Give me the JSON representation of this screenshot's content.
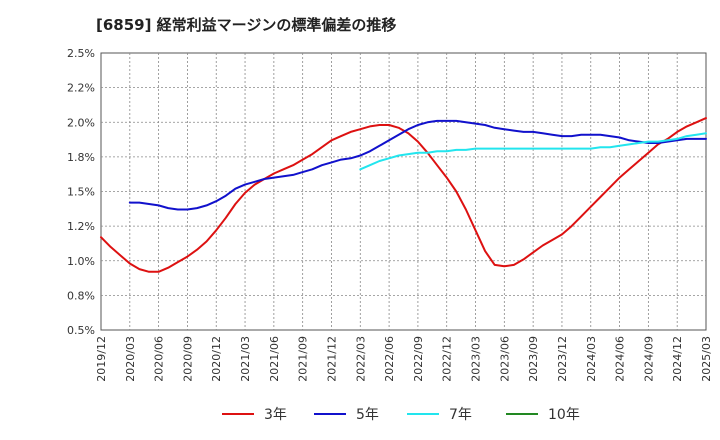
{
  "title": "[6859]  経常利益マージンの標準偏差の推移",
  "chart_data": {
    "type": "line",
    "title": "[6859]  経常利益マージンの標準偏差の推移",
    "xlabel": "",
    "ylabel": "",
    "ylim": [
      0.5,
      2.5
    ],
    "y_ticks": [
      "0.5%",
      "0.8%",
      "1.0%",
      "1.2%",
      "1.5%",
      "1.8%",
      "2.0%",
      "2.2%",
      "2.5%"
    ],
    "x_ticks": [
      "2019/12",
      "2020/03",
      "2020/06",
      "2020/09",
      "2020/12",
      "2021/03",
      "2021/06",
      "2021/09",
      "2021/12",
      "2022/03",
      "2022/06",
      "2022/09",
      "2022/12",
      "2023/03",
      "2023/06",
      "2023/09",
      "2023/12",
      "2024/03",
      "2024/06",
      "2024/09",
      "2024/12",
      "2025/03"
    ],
    "grid": true,
    "legend_position": "bottom",
    "series": [
      {
        "name": "3年",
        "color": "#dd1111",
        "points": [
          [
            "2019/12",
            1.17
          ],
          [
            "2020/01",
            1.1
          ],
          [
            "2020/02",
            1.04
          ],
          [
            "2020/03",
            0.98
          ],
          [
            "2020/04",
            0.94
          ],
          [
            "2020/05",
            0.92
          ],
          [
            "2020/06",
            0.92
          ],
          [
            "2020/07",
            0.95
          ],
          [
            "2020/08",
            0.99
          ],
          [
            "2020/09",
            1.03
          ],
          [
            "2020/10",
            1.08
          ],
          [
            "2020/11",
            1.14
          ],
          [
            "2020/12",
            1.22
          ],
          [
            "2021/01",
            1.31
          ],
          [
            "2021/02",
            1.41
          ],
          [
            "2021/03",
            1.49
          ],
          [
            "2021/04",
            1.55
          ],
          [
            "2021/05",
            1.59
          ],
          [
            "2021/06",
            1.63
          ],
          [
            "2021/07",
            1.66
          ],
          [
            "2021/08",
            1.69
          ],
          [
            "2021/09",
            1.73
          ],
          [
            "2021/10",
            1.77
          ],
          [
            "2021/11",
            1.82
          ],
          [
            "2021/12",
            1.87
          ],
          [
            "2022/01",
            1.9
          ],
          [
            "2022/02",
            1.93
          ],
          [
            "2022/03",
            1.95
          ],
          [
            "2022/04",
            1.97
          ],
          [
            "2022/05",
            1.98
          ],
          [
            "2022/06",
            1.98
          ],
          [
            "2022/07",
            1.96
          ],
          [
            "2022/08",
            1.92
          ],
          [
            "2022/09",
            1.86
          ],
          [
            "2022/10",
            1.78
          ],
          [
            "2022/11",
            1.69
          ],
          [
            "2022/12",
            1.6
          ],
          [
            "2023/01",
            1.5
          ],
          [
            "2023/02",
            1.37
          ],
          [
            "2023/03",
            1.22
          ],
          [
            "2023/04",
            1.07
          ],
          [
            "2023/05",
            0.97
          ],
          [
            "2023/06",
            0.96
          ],
          [
            "2023/07",
            0.97
          ],
          [
            "2023/08",
            1.01
          ],
          [
            "2023/09",
            1.06
          ],
          [
            "2023/10",
            1.11
          ],
          [
            "2023/11",
            1.15
          ],
          [
            "2023/12",
            1.19
          ],
          [
            "2024/01",
            1.25
          ],
          [
            "2024/02",
            1.32
          ],
          [
            "2024/03",
            1.39
          ],
          [
            "2024/04",
            1.46
          ],
          [
            "2024/05",
            1.53
          ],
          [
            "2024/06",
            1.6
          ],
          [
            "2024/07",
            1.66
          ],
          [
            "2024/08",
            1.72
          ],
          [
            "2024/09",
            1.78
          ],
          [
            "2024/10",
            1.84
          ],
          [
            "2024/11",
            1.88
          ],
          [
            "2024/12",
            1.93
          ],
          [
            "2025/01",
            1.97
          ],
          [
            "2025/02",
            2.0
          ],
          [
            "2025/03",
            2.03
          ]
        ]
      },
      {
        "name": "5年",
        "color": "#1111cc",
        "points": [
          [
            "2020/03",
            1.42
          ],
          [
            "2020/04",
            1.42
          ],
          [
            "2020/05",
            1.41
          ],
          [
            "2020/06",
            1.4
          ],
          [
            "2020/07",
            1.38
          ],
          [
            "2020/08",
            1.37
          ],
          [
            "2020/09",
            1.37
          ],
          [
            "2020/10",
            1.38
          ],
          [
            "2020/11",
            1.4
          ],
          [
            "2020/12",
            1.43
          ],
          [
            "2021/01",
            1.47
          ],
          [
            "2021/02",
            1.52
          ],
          [
            "2021/03",
            1.55
          ],
          [
            "2021/04",
            1.57
          ],
          [
            "2021/05",
            1.59
          ],
          [
            "2021/06",
            1.6
          ],
          [
            "2021/07",
            1.61
          ],
          [
            "2021/08",
            1.62
          ],
          [
            "2021/09",
            1.64
          ],
          [
            "2021/10",
            1.66
          ],
          [
            "2021/11",
            1.69
          ],
          [
            "2021/12",
            1.71
          ],
          [
            "2022/01",
            1.73
          ],
          [
            "2022/02",
            1.74
          ],
          [
            "2022/03",
            1.76
          ],
          [
            "2022/04",
            1.79
          ],
          [
            "2022/05",
            1.83
          ],
          [
            "2022/06",
            1.87
          ],
          [
            "2022/07",
            1.91
          ],
          [
            "2022/08",
            1.95
          ],
          [
            "2022/09",
            1.98
          ],
          [
            "2022/10",
            2.0
          ],
          [
            "2022/11",
            2.01
          ],
          [
            "2022/12",
            2.01
          ],
          [
            "2023/01",
            2.01
          ],
          [
            "2023/02",
            2.0
          ],
          [
            "2023/03",
            1.99
          ],
          [
            "2023/04",
            1.98
          ],
          [
            "2023/05",
            1.96
          ],
          [
            "2023/06",
            1.95
          ],
          [
            "2023/07",
            1.94
          ],
          [
            "2023/08",
            1.93
          ],
          [
            "2023/09",
            1.93
          ],
          [
            "2023/10",
            1.92
          ],
          [
            "2023/11",
            1.91
          ],
          [
            "2023/12",
            1.9
          ],
          [
            "2024/01",
            1.9
          ],
          [
            "2024/02",
            1.91
          ],
          [
            "2024/03",
            1.91
          ],
          [
            "2024/04",
            1.91
          ],
          [
            "2024/05",
            1.9
          ],
          [
            "2024/06",
            1.89
          ],
          [
            "2024/07",
            1.87
          ],
          [
            "2024/08",
            1.86
          ],
          [
            "2024/09",
            1.85
          ],
          [
            "2024/10",
            1.85
          ],
          [
            "2024/11",
            1.86
          ],
          [
            "2024/12",
            1.87
          ],
          [
            "2025/01",
            1.88
          ],
          [
            "2025/02",
            1.88
          ],
          [
            "2025/03",
            1.88
          ]
        ]
      },
      {
        "name": "7年",
        "color": "#22e5ee",
        "points": [
          [
            "2022/03",
            1.66
          ],
          [
            "2022/04",
            1.69
          ],
          [
            "2022/05",
            1.72
          ],
          [
            "2022/06",
            1.74
          ],
          [
            "2022/07",
            1.76
          ],
          [
            "2022/08",
            1.77
          ],
          [
            "2022/09",
            1.78
          ],
          [
            "2022/10",
            1.78
          ],
          [
            "2022/11",
            1.79
          ],
          [
            "2022/12",
            1.79
          ],
          [
            "2023/01",
            1.8
          ],
          [
            "2023/02",
            1.8
          ],
          [
            "2023/03",
            1.81
          ],
          [
            "2023/04",
            1.81
          ],
          [
            "2023/05",
            1.81
          ],
          [
            "2023/06",
            1.81
          ],
          [
            "2023/07",
            1.81
          ],
          [
            "2023/08",
            1.81
          ],
          [
            "2023/09",
            1.81
          ],
          [
            "2023/10",
            1.81
          ],
          [
            "2023/11",
            1.81
          ],
          [
            "2023/12",
            1.81
          ],
          [
            "2024/01",
            1.81
          ],
          [
            "2024/02",
            1.81
          ],
          [
            "2024/03",
            1.81
          ],
          [
            "2024/04",
            1.82
          ],
          [
            "2024/05",
            1.82
          ],
          [
            "2024/06",
            1.83
          ],
          [
            "2024/07",
            1.84
          ],
          [
            "2024/08",
            1.85
          ],
          [
            "2024/09",
            1.86
          ],
          [
            "2024/10",
            1.86
          ],
          [
            "2024/11",
            1.87
          ],
          [
            "2024/12",
            1.88
          ],
          [
            "2025/01",
            1.9
          ],
          [
            "2025/02",
            1.91
          ],
          [
            "2025/03",
            1.92
          ]
        ]
      },
      {
        "name": "10年",
        "color": "#228822",
        "points": []
      }
    ]
  }
}
